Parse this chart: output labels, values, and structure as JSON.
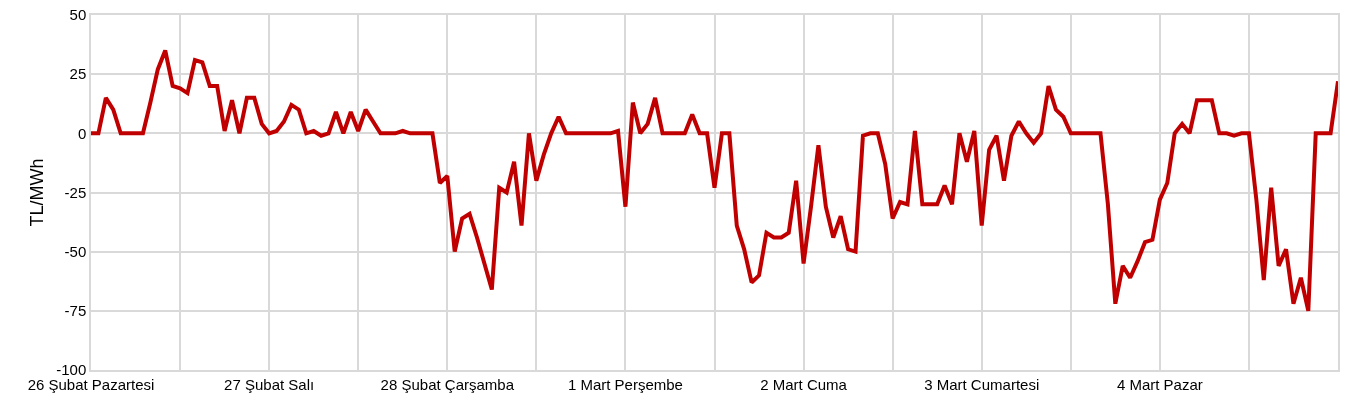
{
  "chart_data": {
    "type": "line",
    "ylabel": "TL/MWh",
    "categories": [
      "26 Şubat Pazartesi",
      null,
      null,
      null,
      null,
      null,
      null,
      null,
      null,
      null,
      null,
      null,
      null,
      null,
      null,
      null,
      null,
      null,
      null,
      null,
      null,
      null,
      null,
      null,
      "27 Şubat Salı",
      null,
      null,
      null,
      null,
      null,
      null,
      null,
      null,
      null,
      null,
      null,
      null,
      null,
      null,
      null,
      null,
      null,
      null,
      null,
      null,
      null,
      null,
      null,
      "28 Şubat Çarşamba",
      null,
      null,
      null,
      null,
      null,
      null,
      null,
      null,
      null,
      null,
      null,
      null,
      null,
      null,
      null,
      null,
      null,
      null,
      null,
      null,
      null,
      null,
      null,
      "1 Mart Perşembe",
      null,
      null,
      null,
      null,
      null,
      null,
      null,
      null,
      null,
      null,
      null,
      null,
      null,
      null,
      null,
      null,
      null,
      null,
      null,
      null,
      null,
      null,
      null,
      "2 Mart Cuma",
      null,
      null,
      null,
      null,
      null,
      null,
      null,
      null,
      null,
      null,
      null,
      null,
      null,
      null,
      null,
      null,
      null,
      null,
      null,
      null,
      null,
      null,
      null,
      "3 Mart Cumartesi",
      null,
      null,
      null,
      null,
      null,
      null,
      null,
      null,
      null,
      null,
      null,
      null,
      null,
      null,
      null,
      null,
      null,
      null,
      null,
      null,
      null,
      null,
      null,
      "4 Mart Pazar",
      null,
      null,
      null,
      null,
      null,
      null,
      null,
      null,
      null,
      null,
      null,
      null,
      null,
      null,
      null,
      null,
      null,
      null,
      null,
      null,
      null,
      null,
      null,
      null
    ],
    "series": [
      {
        "color": "#c00000",
        "values": [
          0,
          0,
          15,
          10,
          0,
          0,
          0,
          0,
          13,
          27,
          35,
          20,
          19,
          17,
          31,
          30,
          20,
          20,
          1,
          14,
          0,
          15,
          15,
          4,
          0,
          1,
          5,
          12,
          10,
          0,
          1,
          -1,
          0,
          9,
          0,
          9,
          1,
          10,
          5,
          0,
          0,
          0,
          1,
          0,
          0,
          0,
          0,
          -21,
          -18,
          -50,
          -36,
          -34,
          -44,
          -55,
          -66,
          -23,
          -25,
          -12,
          -39,
          0,
          -20,
          -9,
          0,
          7,
          0,
          0,
          0,
          0,
          0,
          0,
          0,
          1,
          -31,
          13,
          0,
          4,
          15,
          0,
          0,
          0,
          0,
          8,
          0,
          0,
          -23,
          0,
          0,
          -39,
          -49,
          -63,
          -60,
          -42,
          -44,
          -44,
          -42,
          -20,
          -55,
          -31,
          -5,
          -31,
          -44,
          -35,
          -49,
          -50,
          -1,
          0,
          0,
          -13,
          -36,
          -29,
          -30,
          1,
          -30,
          -30,
          -30,
          -22,
          -30,
          0,
          -12,
          1,
          -39,
          -7,
          -1,
          -20,
          -1,
          5,
          0,
          -4,
          0,
          20,
          10,
          7,
          0,
          0,
          0,
          0,
          0,
          -30,
          -72,
          -56,
          -61,
          -54,
          -46,
          -45,
          -28,
          -21,
          0,
          4,
          0,
          14,
          14,
          14,
          0,
          0,
          -1,
          0,
          0,
          -28,
          -62,
          -23,
          -56,
          -49,
          -72,
          -61,
          -75,
          0,
          0,
          0,
          22
        ]
      }
    ],
    "ylim": [
      -100,
      50
    ],
    "yticks": [
      -100,
      -75,
      -50,
      -25,
      0,
      25,
      50
    ],
    "grid": true,
    "marker": "none",
    "line_style": "solid"
  }
}
